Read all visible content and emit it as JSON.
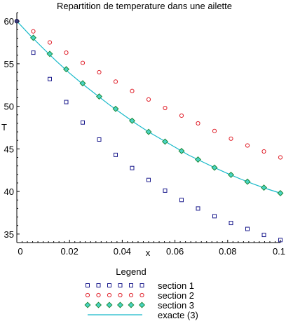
{
  "chart_data": {
    "type": "line",
    "title": "Repartition de temperature dans une ailette",
    "xlabel": "x",
    "ylabel": "T",
    "xlim": [
      0,
      0.1
    ],
    "ylim": [
      34,
      61
    ],
    "x_ticks": [
      0,
      0.02,
      0.04,
      0.06,
      0.08,
      0.1
    ],
    "x_tick_labels": [
      "0",
      "0.02",
      "0.04",
      "0.06",
      "0.08",
      "0.1"
    ],
    "y_ticks": [
      35,
      40,
      45,
      50,
      55,
      60
    ],
    "y_tick_labels": [
      "35",
      "40",
      "45",
      "50",
      "55",
      "60"
    ],
    "grid": false,
    "legend_title": "Legend",
    "legend_position": "bottom",
    "start_point": {
      "x": 0,
      "y": 60
    },
    "series": [
      {
        "name": "section 1",
        "style": "points",
        "marker": "square",
        "color": "#1a1a8c",
        "x": [
          0.00625,
          0.0125,
          0.01875,
          0.025,
          0.03125,
          0.0375,
          0.04375,
          0.05,
          0.05625,
          0.0625,
          0.06875,
          0.075,
          0.08125,
          0.0875,
          0.09375,
          0.1
        ],
        "y": [
          56.3,
          53.2,
          50.5,
          48.1,
          46.1,
          44.3,
          42.75,
          41.35,
          40.1,
          39.0,
          38.0,
          37.1,
          36.3,
          35.6,
          34.9,
          34.3
        ]
      },
      {
        "name": "section 2",
        "style": "points",
        "marker": "circle",
        "color": "#e0202a",
        "x": [
          0.00625,
          0.0125,
          0.01875,
          0.025,
          0.03125,
          0.0375,
          0.04375,
          0.05,
          0.05625,
          0.0625,
          0.06875,
          0.075,
          0.08125,
          0.0875,
          0.09375,
          0.1
        ],
        "y": [
          58.8,
          57.5,
          56.3,
          55.1,
          54.0,
          52.9,
          51.8,
          50.8,
          49.8,
          48.9,
          48.0,
          47.1,
          46.2,
          45.4,
          44.7,
          44.0
        ]
      },
      {
        "name": "section 3",
        "style": "points",
        "marker": "diamond",
        "color": "#1f8a3a",
        "fill": "#48d4c4",
        "x": [
          0.00625,
          0.0125,
          0.01875,
          0.025,
          0.03125,
          0.0375,
          0.04375,
          0.05,
          0.05625,
          0.0625,
          0.06875,
          0.075,
          0.08125,
          0.0875,
          0.09375,
          0.1
        ],
        "y": [
          58.05,
          56.15,
          54.35,
          52.7,
          51.15,
          49.7,
          48.3,
          47.0,
          45.85,
          44.75,
          43.75,
          42.8,
          41.95,
          41.15,
          40.45,
          39.8
        ]
      },
      {
        "name": "exacte (3)",
        "style": "line",
        "color": "#17b9c9",
        "x": [
          0,
          0.005,
          0.01,
          0.015,
          0.02,
          0.025,
          0.03,
          0.035,
          0.04,
          0.045,
          0.05,
          0.055,
          0.06,
          0.065,
          0.07,
          0.075,
          0.08,
          0.085,
          0.09,
          0.095,
          0.1
        ],
        "y": [
          60.0,
          58.35,
          56.8,
          55.3,
          53.9,
          52.6,
          51.4,
          50.2,
          49.1,
          48.0,
          47.0,
          46.1,
          45.2,
          44.3,
          43.55,
          42.8,
          42.1,
          41.45,
          40.85,
          40.3,
          39.8
        ]
      }
    ]
  }
}
